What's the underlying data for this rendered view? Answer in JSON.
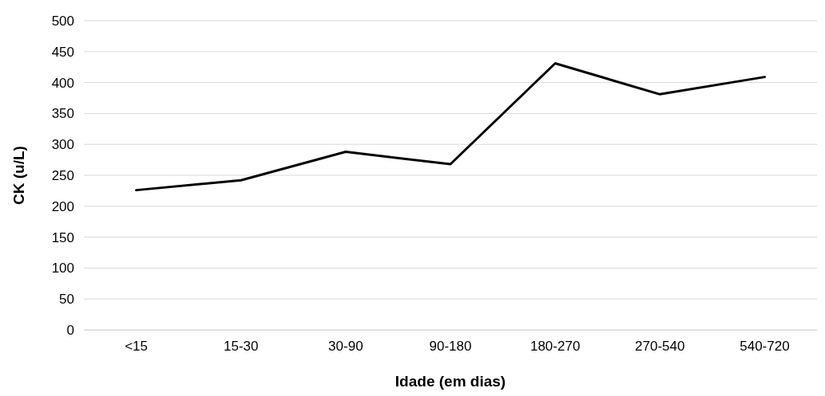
{
  "chart_data": {
    "type": "line",
    "xlabel": "Idade (em dias)",
    "ylabel": "CK (u/L)",
    "categories": [
      "<15",
      "15-30",
      "30-90",
      "90-180",
      "180-270",
      "270-540",
      "540-720"
    ],
    "series": [
      {
        "color": "#000000",
        "values": [
          226,
          242,
          288,
          268,
          431,
          381,
          409
        ]
      }
    ],
    "ylim": [
      0,
      500
    ],
    "yticks": [
      0,
      50,
      100,
      150,
      200,
      250,
      300,
      350,
      400,
      450,
      500
    ],
    "grid": "y",
    "marker": "none",
    "line_style": "solid"
  }
}
